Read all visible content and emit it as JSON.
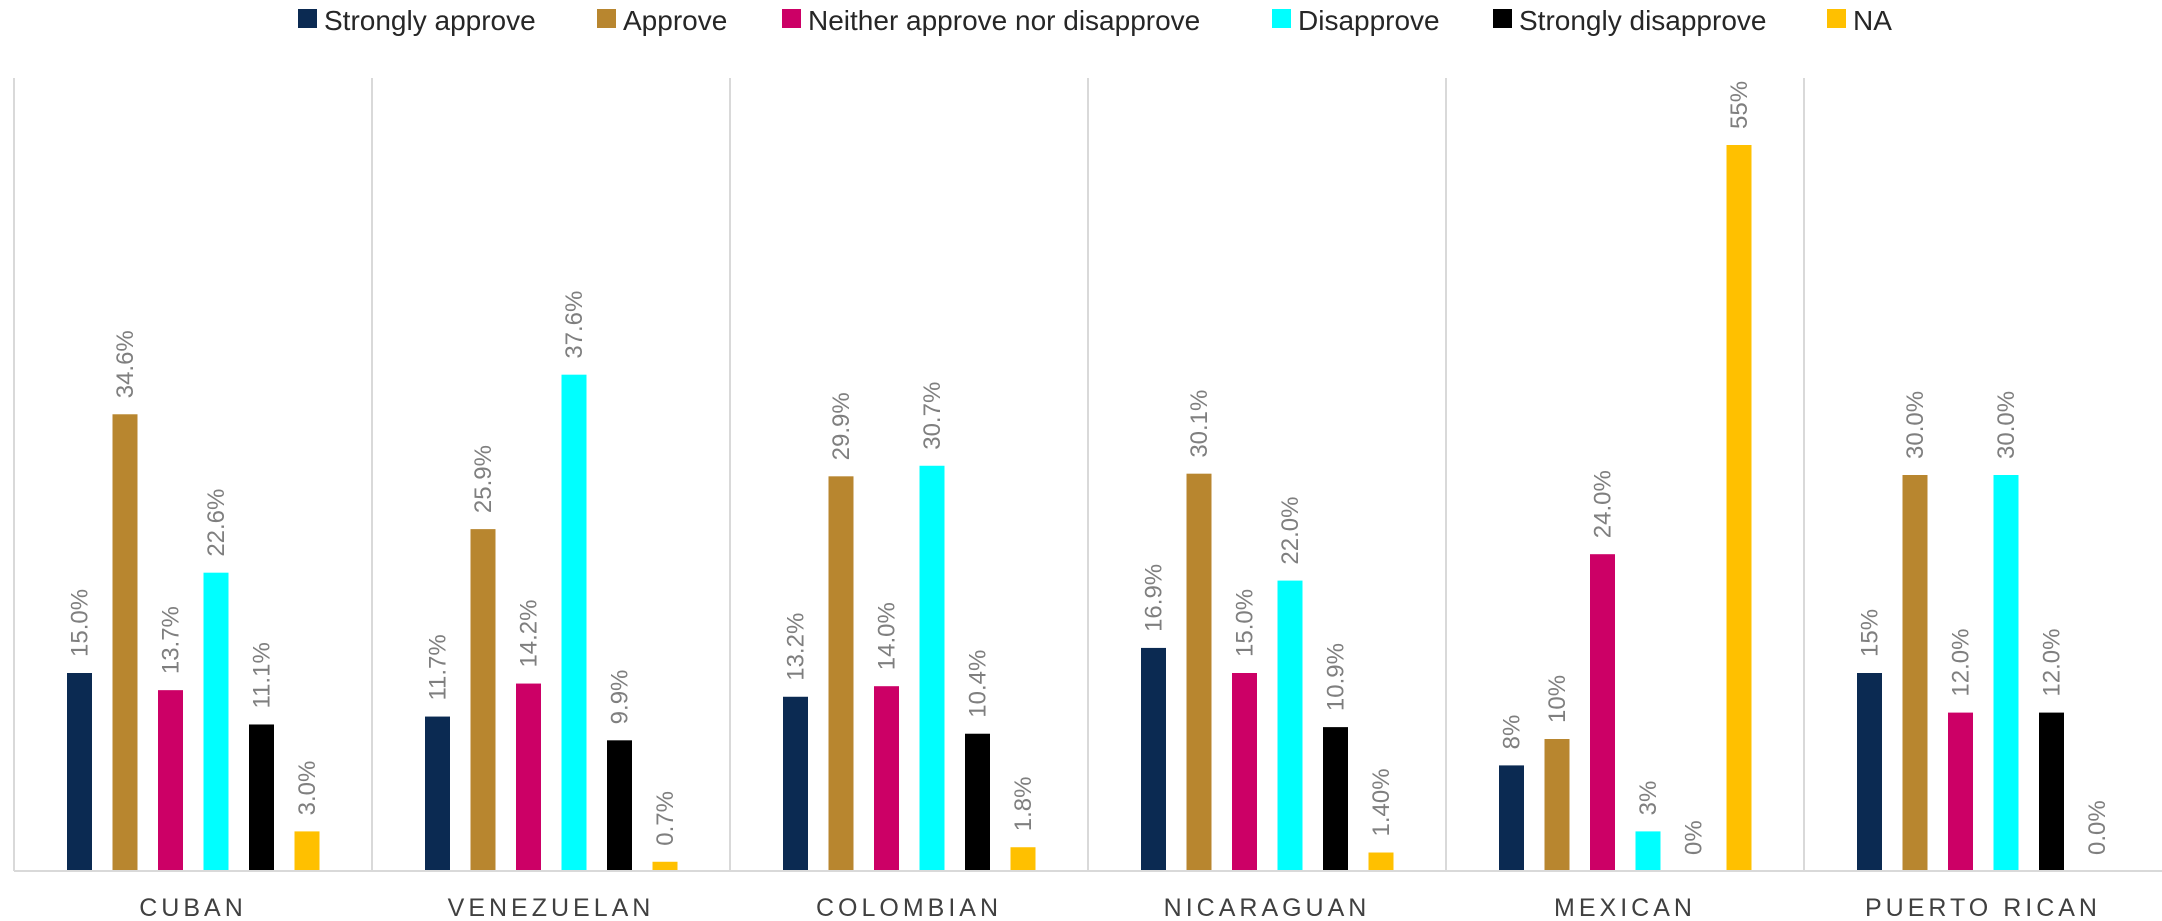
{
  "chart_data": {
    "type": "bar",
    "title": "",
    "xlabel": "",
    "ylabel": "",
    "ylim": [
      0,
      60
    ],
    "grid": false,
    "legend_position": "top",
    "categories": [
      "CUBAN",
      "VENEZUELAN",
      "COLOMBIAN",
      "NICARAGUAN",
      "MEXICAN",
      "PUERTO RICAN"
    ],
    "series": [
      {
        "name": "Strongly approve",
        "color": "#0b2a52",
        "values": [
          15.0,
          11.7,
          13.2,
          16.9,
          8,
          15
        ],
        "labels": [
          "15.0%",
          "11.7%",
          "13.2%",
          "16.9%",
          "8%",
          "15%"
        ]
      },
      {
        "name": "Approve",
        "color": "#b8862f",
        "values": [
          34.6,
          25.9,
          29.9,
          30.1,
          10,
          30.0
        ],
        "labels": [
          "34.6%",
          "25.9%",
          "29.9%",
          "30.1%",
          "10%",
          "30.0%"
        ]
      },
      {
        "name": "Neither approve nor disapprove",
        "color": "#cc0066",
        "values": [
          13.7,
          14.2,
          14.0,
          15.0,
          24.0,
          12.0
        ],
        "labels": [
          "13.7%",
          "14.2%",
          "14.0%",
          "15.0%",
          "24.0%",
          "12.0%"
        ]
      },
      {
        "name": "Disapprove",
        "color": "#00ffff",
        "values": [
          22.6,
          37.6,
          30.7,
          22.0,
          3,
          30.0
        ],
        "labels": [
          "22.6%",
          "37.6%",
          "30.7%",
          "22.0%",
          "3%",
          "30.0%"
        ]
      },
      {
        "name": "Strongly disapprove",
        "color": "#000000",
        "values": [
          11.1,
          9.9,
          10.4,
          10.9,
          0,
          12.0
        ],
        "labels": [
          "11.1%",
          "9.9%",
          "10.4%",
          "10.9%",
          "0%",
          "12.0%"
        ]
      },
      {
        "name": "NA",
        "color": "#ffc000",
        "values": [
          3.0,
          0.7,
          1.8,
          1.4,
          55,
          0.0
        ],
        "labels": [
          "3.0%",
          "0.7%",
          "1.8%",
          "1.40%",
          "55%",
          "0.0%"
        ]
      }
    ]
  }
}
